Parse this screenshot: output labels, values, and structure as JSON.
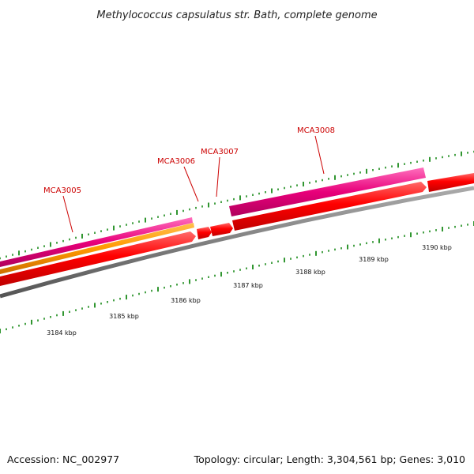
{
  "title": "Methylococcus capsulatus str. Bath, complete genome",
  "footer": {
    "accession": "Accession: NC_002977",
    "summary": "Topology: circular; Length: 3,304,561 bp; Genes: 3,010"
  },
  "genes": [
    {
      "name": "MCA3005",
      "strand": "+"
    },
    {
      "name": "MCA3006",
      "strand": "+"
    },
    {
      "name": "MCA3007",
      "strand": "+"
    },
    {
      "name": "MCA3008",
      "strand": "+"
    }
  ],
  "scale_labels": [
    "3184 kbp",
    "3185 kbp",
    "3186 kbp",
    "3187 kbp",
    "3188 kbp",
    "3189 kbp",
    "3190 kbp"
  ],
  "colors": {
    "cds": "#ff0000",
    "rna_like": "#e8007a",
    "orange_feature": "#ff9900",
    "backbone": "#808080",
    "ticks": "#1a8a1a",
    "gene_label": "#cc0000"
  }
}
